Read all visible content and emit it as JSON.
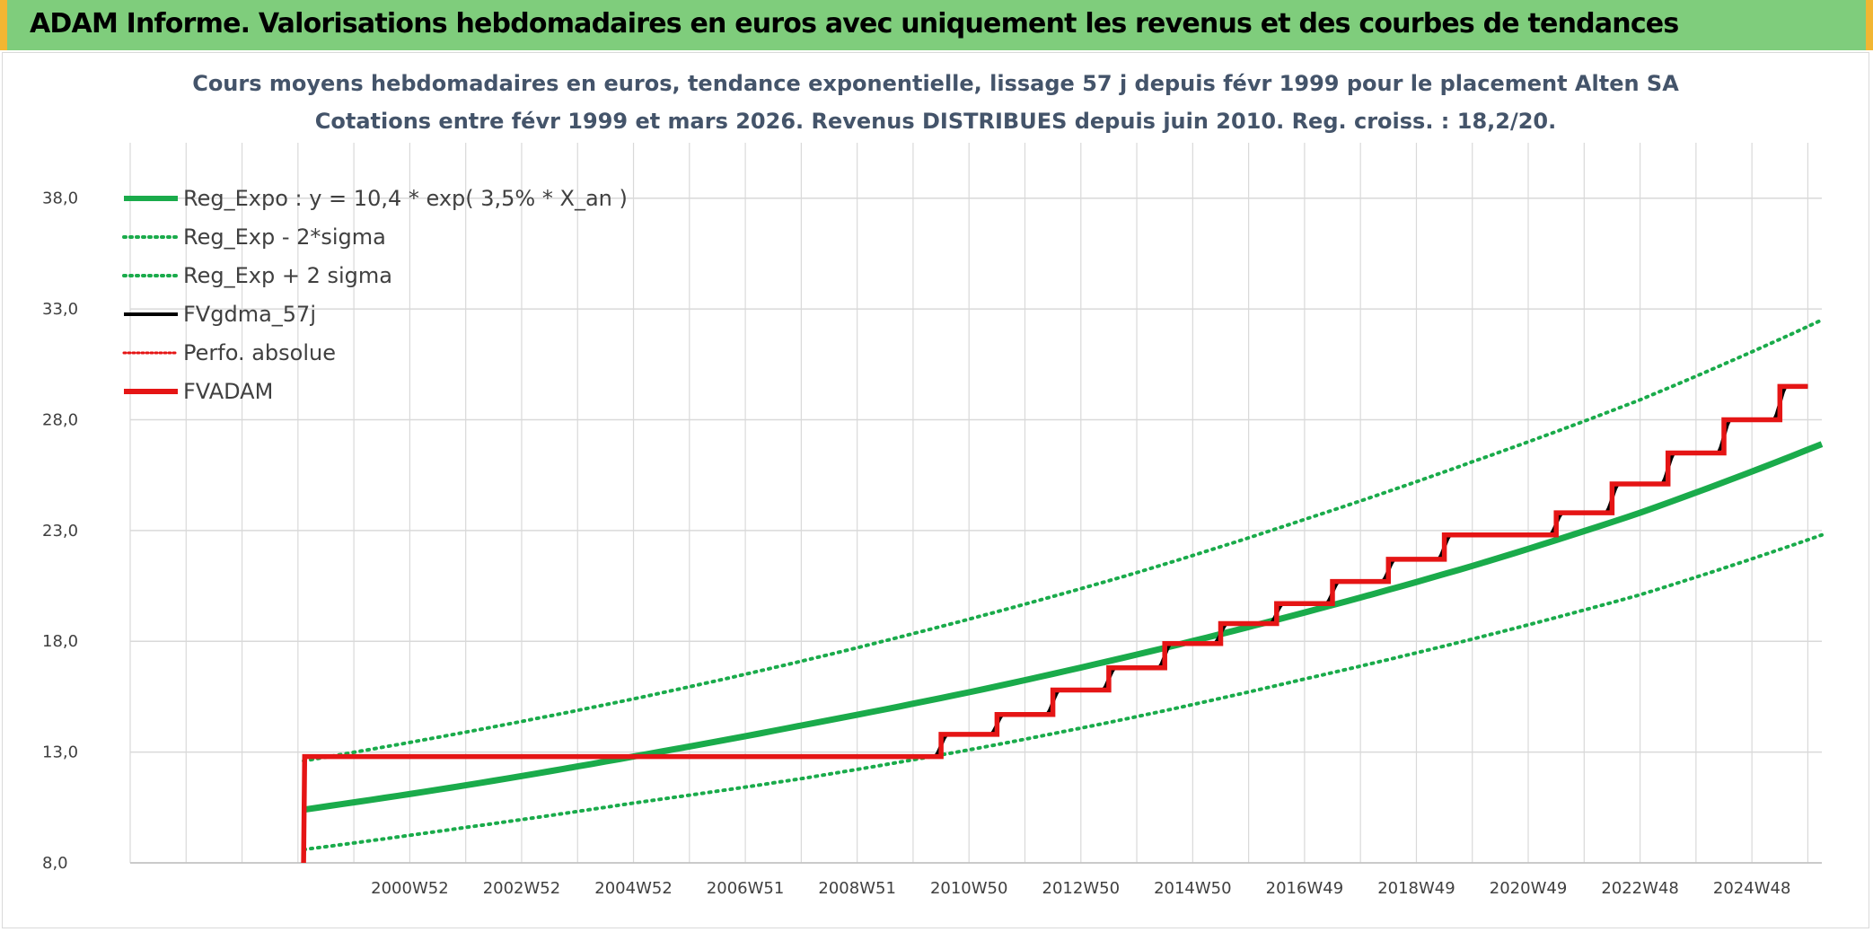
{
  "page": {
    "banner_title": "ADAM Informe. Valorisations hebdomadaires en euros avec uniquement les revenus et des courbes de tendances"
  },
  "colors": {
    "banner": "#7fcd7c",
    "banner_edge": "#f2b632",
    "trend": "#1aab4b",
    "fv": "#e51515",
    "smooth": "#000000",
    "grid": "#d9d9d9",
    "title": "#44546a"
  },
  "chart_data": {
    "type": "line",
    "title": "Cours moyens hebdomadaires en euros, tendance exponentielle, lissage 57 j depuis févr 1999 pour le placement Alten SA",
    "subtitle": "Cotations entre févr 1999 et mars 2026. Revenus DISTRIBUES depuis juin 2010. Reg. croiss. : 18,2/20.",
    "xlabel": "",
    "ylabel": "",
    "ylim": [
      8,
      40.5
    ],
    "xlim": [
      1996.0,
      2026.25
    ],
    "grid": true,
    "legend_position": "top-left",
    "y_ticks": [
      "8,0",
      "13,0",
      "18,0",
      "23,0",
      "28,0",
      "33,0",
      "38,0"
    ],
    "y_tick_values": [
      8,
      13,
      18,
      23,
      28,
      33,
      38
    ],
    "x_ticks": [
      "2000W52",
      "2002W52",
      "2004W52",
      "2006W51",
      "2008W51",
      "2010W50",
      "2012W50",
      "2014W50",
      "2016W49",
      "2018W49",
      "2020W49",
      "2022W48",
      "2024W48"
    ],
    "x_tick_values": [
      2001.0,
      2003.0,
      2005.0,
      2007.0,
      2009.0,
      2011.0,
      2013.0,
      2015.0,
      2017.0,
      2019.0,
      2021.0,
      2023.0,
      2025.0
    ],
    "series": [
      {
        "name": "Reg_Expo : y = 10,4 * exp( 3,5% *  X_an )",
        "style": "solid-thick",
        "x": [
          1999.1,
          2002.0,
          2005.0,
          2008.0,
          2011.0,
          2014.0,
          2017.0,
          2020.0,
          2023.0,
          2026.25
        ],
        "y": [
          10.4,
          11.5,
          12.8,
          14.2,
          15.7,
          17.4,
          19.3,
          21.4,
          23.8,
          26.9
        ]
      },
      {
        "name": "Reg_Exp - 2*sigma",
        "style": "dotted",
        "x": [
          1999.1,
          2002.0,
          2005.0,
          2008.0,
          2011.0,
          2014.0,
          2017.0,
          2020.0,
          2023.0,
          2026.25
        ],
        "y": [
          8.6,
          9.6,
          10.7,
          11.8,
          13.1,
          14.6,
          16.3,
          18.1,
          20.1,
          22.8
        ]
      },
      {
        "name": "Reg_Exp + 2 sigma",
        "style": "dotted",
        "x": [
          1999.1,
          2002.0,
          2005.0,
          2008.0,
          2011.0,
          2014.0,
          2017.0,
          2020.0,
          2023.0,
          2026.25
        ],
        "y": [
          12.6,
          13.9,
          15.4,
          17.1,
          19.0,
          21.1,
          23.5,
          26.1,
          28.9,
          32.5
        ]
      },
      {
        "name": "FVgdma_57j",
        "style": "solid-smooth",
        "steps": [
          [
            1999.1,
            8.0
          ],
          [
            1999.12,
            12.8
          ],
          [
            2010.5,
            12.8
          ],
          [
            2010.5,
            13.8
          ],
          [
            2011.5,
            13.8
          ],
          [
            2011.5,
            14.7
          ],
          [
            2012.5,
            14.7
          ],
          [
            2012.5,
            15.8
          ],
          [
            2013.5,
            15.8
          ],
          [
            2013.5,
            16.8
          ],
          [
            2014.5,
            16.8
          ],
          [
            2014.5,
            17.9
          ],
          [
            2015.5,
            17.9
          ],
          [
            2015.5,
            18.8
          ],
          [
            2016.5,
            18.8
          ],
          [
            2016.5,
            19.7
          ],
          [
            2017.5,
            19.7
          ],
          [
            2017.5,
            20.7
          ],
          [
            2018.5,
            20.7
          ],
          [
            2018.5,
            21.7
          ],
          [
            2019.5,
            21.7
          ],
          [
            2019.5,
            22.8
          ],
          [
            2021.5,
            22.8
          ],
          [
            2021.5,
            23.8
          ],
          [
            2022.5,
            23.8
          ],
          [
            2022.5,
            25.1
          ],
          [
            2023.5,
            25.1
          ],
          [
            2023.5,
            26.5
          ],
          [
            2024.5,
            26.5
          ],
          [
            2024.5,
            28.0
          ],
          [
            2025.5,
            28.0
          ],
          [
            2025.5,
            29.5
          ],
          [
            2026.0,
            29.5
          ]
        ]
      },
      {
        "name": "Perfo. absolue",
        "style": "dotted-red",
        "x": [],
        "y": []
      },
      {
        "name": "FVADAM",
        "style": "step-thick",
        "steps": [
          [
            1999.1,
            8.0
          ],
          [
            1999.12,
            12.8
          ],
          [
            2010.5,
            12.8
          ],
          [
            2010.5,
            13.8
          ],
          [
            2011.5,
            13.8
          ],
          [
            2011.5,
            14.7
          ],
          [
            2012.5,
            14.7
          ],
          [
            2012.5,
            15.8
          ],
          [
            2013.5,
            15.8
          ],
          [
            2013.5,
            16.8
          ],
          [
            2014.5,
            16.8
          ],
          [
            2014.5,
            17.9
          ],
          [
            2015.5,
            17.9
          ],
          [
            2015.5,
            18.8
          ],
          [
            2016.5,
            18.8
          ],
          [
            2016.5,
            19.7
          ],
          [
            2017.5,
            19.7
          ],
          [
            2017.5,
            20.7
          ],
          [
            2018.5,
            20.7
          ],
          [
            2018.5,
            21.7
          ],
          [
            2019.5,
            21.7
          ],
          [
            2019.5,
            22.8
          ],
          [
            2021.5,
            22.8
          ],
          [
            2021.5,
            23.8
          ],
          [
            2022.5,
            23.8
          ],
          [
            2022.5,
            25.1
          ],
          [
            2023.5,
            25.1
          ],
          [
            2023.5,
            26.5
          ],
          [
            2024.5,
            26.5
          ],
          [
            2024.5,
            28.0
          ],
          [
            2025.5,
            28.0
          ],
          [
            2025.5,
            29.5
          ],
          [
            2026.0,
            29.5
          ]
        ]
      }
    ]
  }
}
